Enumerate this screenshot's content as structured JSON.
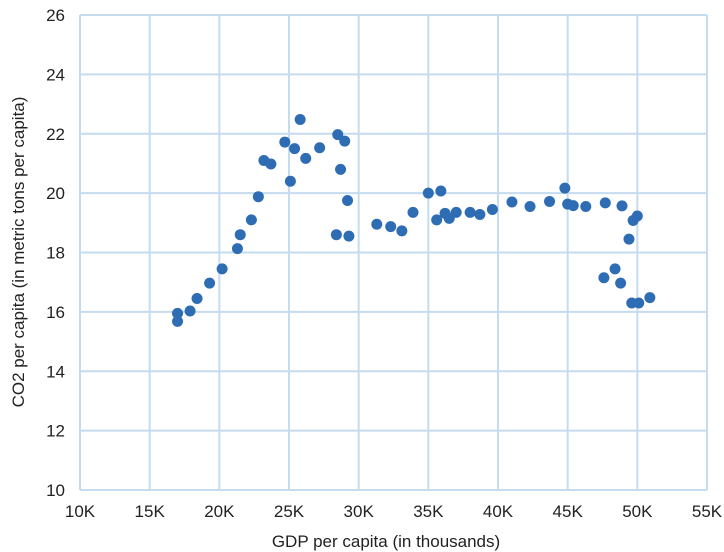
{
  "chart_data": {
    "type": "scatter",
    "xlabel": "GDP per capita (in thousands)",
    "ylabel": "CO2 per capita (in metric tons per capita)",
    "xlim": [
      10,
      55
    ],
    "ylim": [
      10,
      26
    ],
    "x_ticks": [
      10,
      15,
      20,
      25,
      30,
      35,
      40,
      45,
      50,
      55
    ],
    "x_tick_labels": [
      "10K",
      "15K",
      "20K",
      "25K",
      "30K",
      "35K",
      "40K",
      "45K",
      "50K",
      "55K"
    ],
    "y_ticks": [
      10,
      12,
      14,
      16,
      18,
      20,
      22,
      24,
      26
    ],
    "y_tick_labels": [
      "10",
      "12",
      "14",
      "16",
      "18",
      "20",
      "22",
      "24",
      "26"
    ],
    "grid": true,
    "legend": "none",
    "colors": {
      "point": "#2e6db4",
      "grid": "#c5dcef",
      "tick": "#222222"
    },
    "series": [
      {
        "points": [
          [
            17.0,
            15.95
          ],
          [
            17.0,
            15.68
          ],
          [
            17.9,
            16.03
          ],
          [
            18.4,
            16.45
          ],
          [
            19.3,
            16.97
          ],
          [
            20.2,
            17.45
          ],
          [
            21.3,
            18.13
          ],
          [
            21.5,
            18.6
          ],
          [
            22.3,
            19.1
          ],
          [
            22.8,
            19.88
          ],
          [
            23.2,
            21.1
          ],
          [
            23.7,
            20.98
          ],
          [
            24.7,
            21.72
          ],
          [
            25.1,
            20.4
          ],
          [
            25.4,
            21.5
          ],
          [
            25.8,
            22.48
          ],
          [
            26.2,
            21.17
          ],
          [
            27.2,
            21.53
          ],
          [
            28.4,
            18.6
          ],
          [
            28.5,
            21.97
          ],
          [
            28.7,
            20.8
          ],
          [
            29.0,
            21.75
          ],
          [
            29.2,
            19.75
          ],
          [
            29.3,
            18.55
          ],
          [
            31.3,
            18.95
          ],
          [
            32.3,
            18.87
          ],
          [
            33.1,
            18.73
          ],
          [
            33.9,
            19.35
          ],
          [
            35.0,
            20.0
          ],
          [
            35.6,
            19.1
          ],
          [
            35.9,
            20.07
          ],
          [
            36.2,
            19.32
          ],
          [
            36.5,
            19.15
          ],
          [
            37.0,
            19.35
          ],
          [
            38.0,
            19.35
          ],
          [
            38.7,
            19.28
          ],
          [
            39.6,
            19.45
          ],
          [
            41.0,
            19.7
          ],
          [
            42.3,
            19.55
          ],
          [
            43.7,
            19.72
          ],
          [
            44.8,
            20.17
          ],
          [
            45.0,
            19.63
          ],
          [
            45.4,
            19.58
          ],
          [
            46.3,
            19.55
          ],
          [
            47.6,
            17.15
          ],
          [
            47.7,
            19.67
          ],
          [
            48.4,
            17.45
          ],
          [
            48.8,
            16.97
          ],
          [
            48.9,
            19.57
          ],
          [
            49.4,
            18.45
          ],
          [
            49.6,
            16.3
          ],
          [
            49.7,
            19.08
          ],
          [
            50.0,
            19.23
          ],
          [
            50.1,
            16.3
          ],
          [
            50.9,
            16.48
          ]
        ]
      }
    ]
  }
}
